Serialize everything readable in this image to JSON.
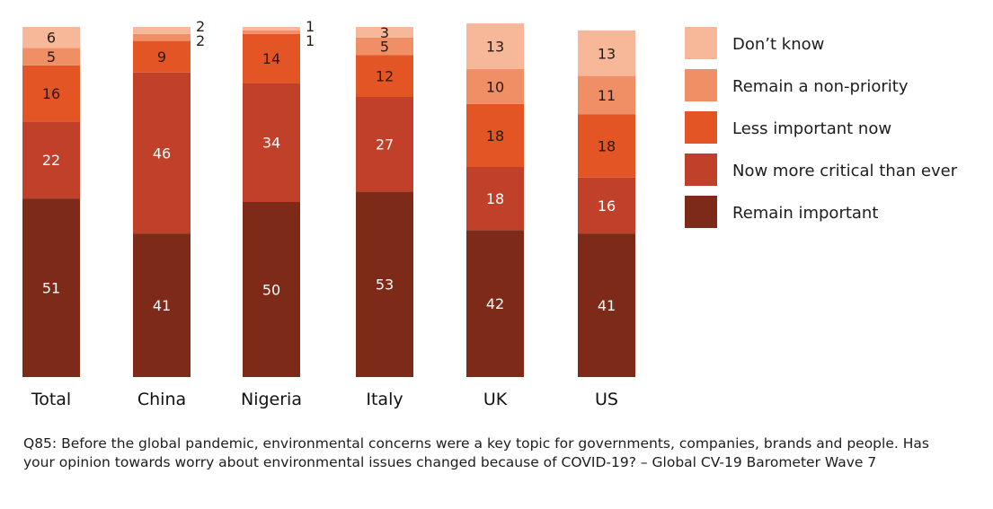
{
  "chart_data": {
    "type": "bar",
    "stacked": true,
    "categories": [
      "Total",
      "China",
      "Nigeria",
      "Italy",
      "UK",
      "US"
    ],
    "series": [
      {
        "name": "Remain important",
        "color": "#7E2A19",
        "values": [
          51,
          41,
          50,
          53,
          42,
          41
        ]
      },
      {
        "name": "Now more critical than ever",
        "color": "#C0402A",
        "values": [
          22,
          46,
          34,
          27,
          18,
          16
        ]
      },
      {
        "name": "Less important now",
        "color": "#E35524",
        "values": [
          16,
          9,
          14,
          12,
          18,
          18
        ]
      },
      {
        "name": "Remain a non-priority",
        "color": "#F08F66",
        "values": [
          5,
          2,
          1,
          5,
          10,
          11
        ]
      },
      {
        "name": "Don’t know",
        "color": "#F7B89A",
        "values": [
          6,
          2,
          1,
          3,
          13,
          13
        ]
      }
    ],
    "legend_order": [
      "Don’t know",
      "Remain a non-priority",
      "Less important now",
      "Now more critical than ever",
      "Remain important"
    ],
    "legend_position": "right",
    "ylim": [
      0,
      100
    ],
    "grid": false,
    "title": "",
    "xlabel": "",
    "ylabel": ""
  },
  "footnote": "Q85: Before the global pandemic, environmental concerns were a key topic for governments, companies, brands and people. Has your opinion towards worry about environmental issues changed because of COVID-19? – Global CV-19 Barometer Wave 7"
}
